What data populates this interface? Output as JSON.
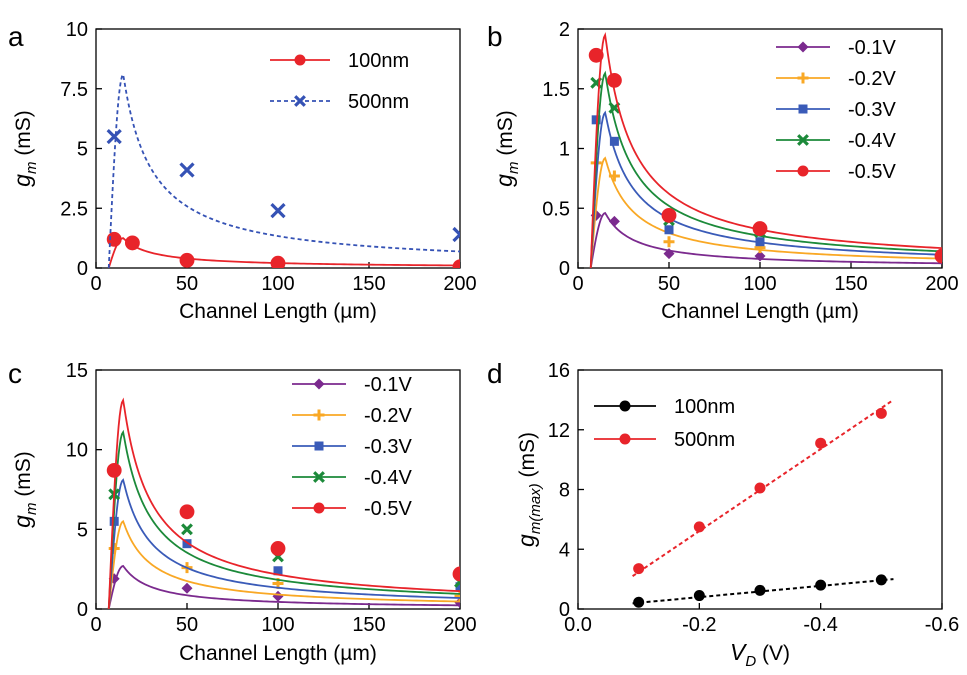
{
  "chart_data": [
    {
      "panel": "a",
      "type": "line",
      "xlabel": "Channel Length (µm)",
      "ylabel_main": "g",
      "ylabel_sub": "m",
      "ylabel_unit": " (mS)",
      "xlim": [
        0,
        200
      ],
      "ylim": [
        0,
        10
      ],
      "xticks": [
        0,
        50,
        100,
        150,
        200
      ],
      "yticks": [
        0,
        2.5,
        5,
        7.5,
        10
      ],
      "ytick_labels": [
        "0",
        "2.5",
        "5",
        "7.5",
        "10"
      ],
      "legend": "top-right",
      "series": [
        {
          "name": "100nm",
          "color": "#e8242a",
          "marker": "circle",
          "dash": false,
          "peak": 1.25,
          "points": [
            [
              10,
              1.2
            ],
            [
              20,
              1.05
            ],
            [
              50,
              0.32
            ],
            [
              100,
              0.2
            ],
            [
              200,
              0.05
            ]
          ]
        },
        {
          "name": "500nm",
          "color": "#3552b5",
          "marker": "x",
          "dash": true,
          "peak": 8.1,
          "points": [
            [
              10,
              5.5
            ],
            [
              50,
              4.1
            ],
            [
              100,
              2.4
            ],
            [
              200,
              1.4
            ]
          ]
        }
      ]
    },
    {
      "panel": "b",
      "type": "line",
      "xlabel": "Channel Length (µm)",
      "ylabel_main": "g",
      "ylabel_sub": "m",
      "ylabel_unit": " (mS)",
      "xlim": [
        0,
        200
      ],
      "ylim": [
        0,
        2
      ],
      "xticks": [
        0,
        50,
        100,
        150,
        200
      ],
      "yticks": [
        0,
        0.5,
        1,
        1.5,
        2
      ],
      "ytick_labels": [
        "0",
        "0.5",
        "1",
        "1.5",
        "2"
      ],
      "legend": "top-right",
      "series": [
        {
          "name": "-0.1V",
          "color": "#7b2a8e",
          "marker": "diamond",
          "peak": 0.46,
          "points": [
            [
              10,
              0.44
            ],
            [
              20,
              0.39
            ],
            [
              50,
              0.12
            ],
            [
              100,
              0.1
            ],
            [
              200,
              0.08
            ]
          ]
        },
        {
          "name": "-0.2V",
          "color": "#f9a825",
          "marker": "plus",
          "peak": 0.92,
          "points": [
            [
              10,
              0.88
            ],
            [
              20,
              0.77
            ],
            [
              50,
              0.22
            ],
            [
              100,
              0.17
            ],
            [
              200,
              0.1
            ]
          ]
        },
        {
          "name": "-0.3V",
          "color": "#3a5bb8",
          "marker": "square",
          "peak": 1.3,
          "points": [
            [
              10,
              1.24
            ],
            [
              20,
              1.06
            ],
            [
              50,
              0.32
            ],
            [
              100,
              0.22
            ],
            [
              200,
              0.1
            ]
          ]
        },
        {
          "name": "-0.4V",
          "color": "#1c8a3a",
          "marker": "x",
          "peak": 1.63,
          "points": [
            [
              10,
              1.55
            ],
            [
              20,
              1.34
            ],
            [
              50,
              0.4
            ],
            [
              100,
              0.3
            ],
            [
              200,
              0.1
            ]
          ]
        },
        {
          "name": "-0.5V",
          "color": "#e8242a",
          "marker": "circle",
          "peak": 1.95,
          "points": [
            [
              10,
              1.78
            ],
            [
              20,
              1.57
            ],
            [
              50,
              0.44
            ],
            [
              100,
              0.33
            ],
            [
              200,
              0.1
            ]
          ]
        }
      ]
    },
    {
      "panel": "c",
      "type": "line",
      "xlabel": "Channel Length (µm)",
      "ylabel_main": "g",
      "ylabel_sub": "m",
      "ylabel_unit": " (mS)",
      "xlim": [
        0,
        200
      ],
      "ylim": [
        0,
        15
      ],
      "xticks": [
        0,
        50,
        100,
        150,
        200
      ],
      "yticks": [
        0,
        5,
        10,
        15
      ],
      "ytick_labels": [
        "0",
        "5",
        "10",
        "15"
      ],
      "legend": "top-right",
      "series": [
        {
          "name": "-0.1V",
          "color": "#7b2a8e",
          "marker": "diamond",
          "peak": 2.7,
          "points": [
            [
              10,
              1.9
            ],
            [
              50,
              1.3
            ],
            [
              100,
              0.8
            ],
            [
              200,
              0.4
            ]
          ]
        },
        {
          "name": "-0.2V",
          "color": "#f9a825",
          "marker": "plus",
          "peak": 5.5,
          "points": [
            [
              10,
              3.8
            ],
            [
              50,
              2.6
            ],
            [
              100,
              1.6
            ],
            [
              200,
              0.8
            ]
          ]
        },
        {
          "name": "-0.3V",
          "color": "#3a5bb8",
          "marker": "square",
          "peak": 8.1,
          "points": [
            [
              10,
              5.5
            ],
            [
              50,
              4.1
            ],
            [
              100,
              2.4
            ],
            [
              200,
              1.4
            ]
          ]
        },
        {
          "name": "-0.4V",
          "color": "#1c8a3a",
          "marker": "x",
          "peak": 11.1,
          "points": [
            [
              10,
              7.2
            ],
            [
              50,
              5.0
            ],
            [
              100,
              3.3
            ],
            [
              200,
              1.7
            ]
          ]
        },
        {
          "name": "-0.5V",
          "color": "#e8242a",
          "marker": "circle",
          "peak": 13.1,
          "points": [
            [
              10,
              8.7
            ],
            [
              50,
              6.1
            ],
            [
              100,
              3.8
            ],
            [
              200,
              2.2
            ]
          ]
        }
      ]
    },
    {
      "panel": "d",
      "type": "scatter",
      "xlabel_main": "V",
      "xlabel_sub": "D",
      "xlabel_unit": " (V)",
      "ylabel_main": "g",
      "ylabel_sub": "m(max)",
      "ylabel_unit": " (mS)",
      "xlim": [
        0,
        -0.6
      ],
      "ylim": [
        0,
        16
      ],
      "xticks": [
        0,
        -0.2,
        -0.4,
        -0.6
      ],
      "xtick_labels": [
        "0.0",
        "-0.2",
        "-0.4",
        "-0.6"
      ],
      "yticks": [
        0,
        4,
        8,
        12,
        16
      ],
      "ytick_labels": [
        "0",
        "4",
        "8",
        "12",
        "16"
      ],
      "legend": "top-left",
      "series": [
        {
          "name": "100nm",
          "color": "#000000",
          "marker": "circle",
          "fit": [
            [
              -0.09,
              0.38
            ],
            [
              -0.52,
              2.0
            ]
          ],
          "points": [
            [
              -0.1,
              0.45
            ],
            [
              -0.2,
              0.9
            ],
            [
              -0.3,
              1.25
            ],
            [
              -0.4,
              1.6
            ],
            [
              -0.5,
              1.95
            ]
          ]
        },
        {
          "name": "500nm",
          "color": "#e8242a",
          "marker": "circle",
          "fit": [
            [
              -0.09,
              2.2
            ],
            [
              -0.52,
              14.0
            ]
          ],
          "points": [
            [
              -0.1,
              2.7
            ],
            [
              -0.2,
              5.5
            ],
            [
              -0.3,
              8.1
            ],
            [
              -0.4,
              11.1
            ],
            [
              -0.5,
              13.1
            ]
          ]
        }
      ]
    }
  ],
  "panel_letters": [
    "a",
    "b",
    "c",
    "d"
  ]
}
